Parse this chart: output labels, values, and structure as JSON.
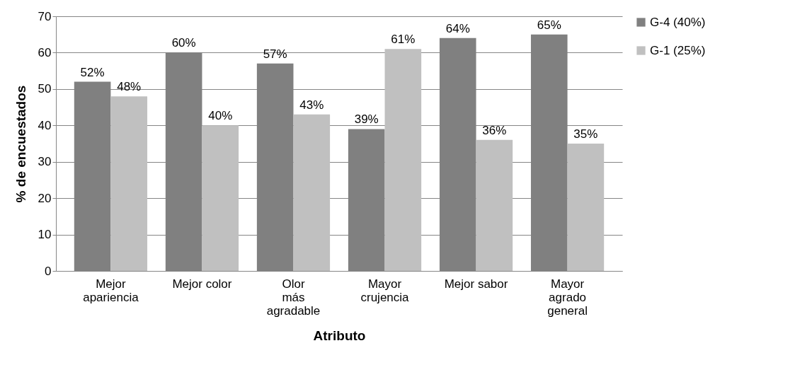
{
  "chart_data": {
    "type": "bar",
    "xlabel": "Atributo",
    "ylabel": "% de encuestados",
    "categories": [
      "Mejor apariencia",
      "Mejor color",
      "Olor más agradable",
      "Mayor crujencia",
      "Mejor sabor",
      "Mayor agrado general"
    ],
    "series": [
      {
        "name": "G-4 (40%)",
        "color": "#808080",
        "values": [
          52,
          60,
          57,
          39,
          64,
          65
        ],
        "value_labels": [
          "52%",
          "60%",
          "57%",
          "39%",
          "64%",
          "65%"
        ]
      },
      {
        "name": "G-1 (25%)",
        "color": "#c0c0c0",
        "values": [
          48,
          40,
          43,
          61,
          36,
          35
        ],
        "value_labels": [
          "48%",
          "40%",
          "43%",
          "61%",
          "36%",
          "35%"
        ]
      }
    ],
    "ylim": [
      0,
      70
    ],
    "yticks": [
      0,
      10,
      20,
      30,
      40,
      50,
      60,
      70
    ],
    "grid": "y",
    "legend": "right"
  }
}
